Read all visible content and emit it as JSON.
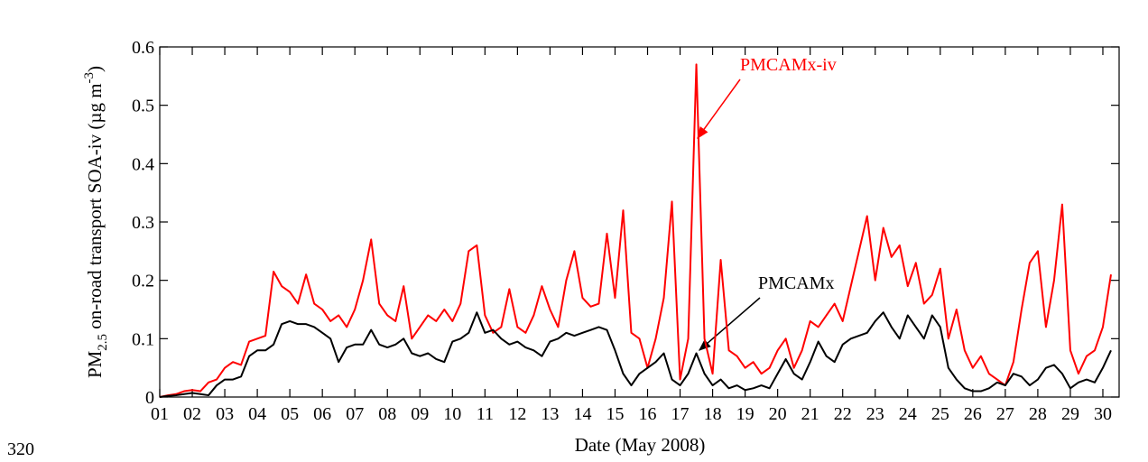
{
  "page_number": "320",
  "chart_data": {
    "type": "line",
    "xlabel": "Date (May 2008)",
    "ylabel": {
      "prefix": "PM",
      "sub": "2.5",
      "middle": " on-road transport SOA-iv (µg m",
      "sup": "-3",
      "suffix": ")"
    },
    "xlim": [
      1,
      30.5
    ],
    "ylim": [
      0,
      0.6
    ],
    "yticks": [
      0,
      0.1,
      0.2,
      0.3,
      0.4,
      0.5,
      0.6
    ],
    "xticks": [
      {
        "value": 1,
        "label": "01"
      },
      {
        "value": 2,
        "label": "02"
      },
      {
        "value": 3,
        "label": "03"
      },
      {
        "value": 4,
        "label": "04"
      },
      {
        "value": 5,
        "label": "05"
      },
      {
        "value": 6,
        "label": "06"
      },
      {
        "value": 7,
        "label": "07"
      },
      {
        "value": 8,
        "label": "08"
      },
      {
        "value": 9,
        "label": "09"
      },
      10,
      11,
      12,
      13,
      14,
      15,
      16,
      17,
      18,
      19,
      20,
      21,
      22,
      23,
      24,
      25,
      26,
      27,
      28,
      29,
      30
    ],
    "annotations": [
      "PMCAMx-iv",
      "PMCAMx"
    ],
    "x": [
      1,
      1.25,
      1.5,
      1.75,
      2,
      2.25,
      2.5,
      2.75,
      3,
      3.25,
      3.5,
      3.75,
      4,
      4.25,
      4.5,
      4.75,
      5,
      5.25,
      5.5,
      5.75,
      6,
      6.25,
      6.5,
      6.75,
      7,
      7.25,
      7.5,
      7.75,
      8,
      8.25,
      8.5,
      8.75,
      9,
      9.25,
      9.5,
      9.75,
      10,
      10.25,
      10.5,
      10.75,
      11,
      11.25,
      11.5,
      11.75,
      12,
      12.25,
      12.5,
      12.75,
      13,
      13.25,
      13.5,
      13.75,
      14,
      14.25,
      14.5,
      14.75,
      15,
      15.25,
      15.5,
      15.75,
      16,
      16.25,
      16.5,
      16.75,
      17,
      17.25,
      17.5,
      17.75,
      18,
      18.25,
      18.5,
      18.75,
      19,
      19.25,
      19.5,
      19.75,
      20,
      20.25,
      20.5,
      20.75,
      21,
      21.25,
      21.5,
      21.75,
      22,
      22.25,
      22.5,
      22.75,
      23,
      23.25,
      23.5,
      23.75,
      24,
      24.25,
      24.5,
      24.75,
      25,
      25.25,
      25.5,
      25.75,
      26,
      26.25,
      26.5,
      26.75,
      27,
      27.25,
      27.5,
      27.75,
      28,
      28.25,
      28.5,
      28.75,
      29,
      29.25,
      29.5,
      29.75,
      30,
      30.25
    ],
    "series": [
      {
        "name": "PMCAMx-iv",
        "color": "#ff0000",
        "values": [
          0,
          0.003,
          0.005,
          0.01,
          0.012,
          0.01,
          0.025,
          0.03,
          0.05,
          0.06,
          0.055,
          0.095,
          0.1,
          0.105,
          0.215,
          0.19,
          0.18,
          0.16,
          0.21,
          0.16,
          0.15,
          0.13,
          0.14,
          0.12,
          0.15,
          0.2,
          0.27,
          0.16,
          0.14,
          0.13,
          0.19,
          0.1,
          0.12,
          0.14,
          0.13,
          0.15,
          0.13,
          0.16,
          0.25,
          0.26,
          0.14,
          0.11,
          0.12,
          0.185,
          0.12,
          0.11,
          0.14,
          0.19,
          0.15,
          0.12,
          0.2,
          0.25,
          0.17,
          0.155,
          0.16,
          0.28,
          0.17,
          0.32,
          0.11,
          0.1,
          0.05,
          0.1,
          0.17,
          0.335,
          0.03,
          0.1,
          0.57,
          0.1,
          0.04,
          0.235,
          0.08,
          0.07,
          0.05,
          0.06,
          0.04,
          0.05,
          0.08,
          0.1,
          0.05,
          0.08,
          0.13,
          0.12,
          0.14,
          0.16,
          0.13,
          0.19,
          0.25,
          0.31,
          0.2,
          0.29,
          0.24,
          0.26,
          0.19,
          0.23,
          0.16,
          0.175,
          0.22,
          0.1,
          0.15,
          0.08,
          0.05,
          0.07,
          0.04,
          0.03,
          0.02,
          0.06,
          0.15,
          0.23,
          0.25,
          0.12,
          0.2,
          0.33,
          0.08,
          0.04,
          0.07,
          0.08,
          0.12,
          0.21
        ]
      },
      {
        "name": "PMCAMx",
        "color": "#000000",
        "values": [
          0,
          0.002,
          0.003,
          0.005,
          0.007,
          0.005,
          0.003,
          0.02,
          0.03,
          0.03,
          0.035,
          0.07,
          0.08,
          0.08,
          0.09,
          0.125,
          0.13,
          0.125,
          0.125,
          0.12,
          0.11,
          0.1,
          0.06,
          0.085,
          0.09,
          0.09,
          0.115,
          0.09,
          0.085,
          0.09,
          0.1,
          0.075,
          0.07,
          0.075,
          0.065,
          0.06,
          0.095,
          0.1,
          0.11,
          0.145,
          0.11,
          0.115,
          0.1,
          0.09,
          0.095,
          0.085,
          0.08,
          0.07,
          0.095,
          0.1,
          0.11,
          0.105,
          0.11,
          0.115,
          0.12,
          0.115,
          0.08,
          0.04,
          0.02,
          0.04,
          0.05,
          0.06,
          0.075,
          0.03,
          0.02,
          0.04,
          0.075,
          0.04,
          0.02,
          0.03,
          0.015,
          0.02,
          0.012,
          0.015,
          0.02,
          0.015,
          0.04,
          0.065,
          0.04,
          0.03,
          0.06,
          0.095,
          0.07,
          0.06,
          0.09,
          0.1,
          0.105,
          0.11,
          0.13,
          0.145,
          0.12,
          0.1,
          0.14,
          0.12,
          0.1,
          0.14,
          0.12,
          0.05,
          0.03,
          0.015,
          0.01,
          0.01,
          0.015,
          0.025,
          0.02,
          0.04,
          0.035,
          0.02,
          0.03,
          0.05,
          0.055,
          0.04,
          0.015,
          0.025,
          0.03,
          0.025,
          0.05,
          0.08
        ]
      }
    ]
  }
}
